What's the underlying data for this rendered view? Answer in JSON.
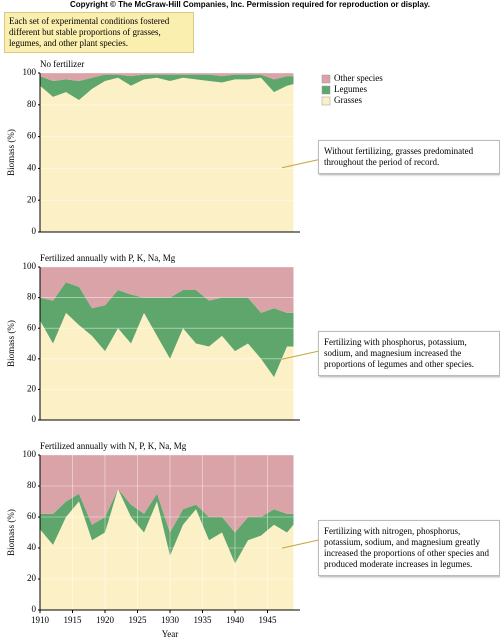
{
  "header": {
    "copyright": "Copyright © The McGraw-Hill Companies, Inc. Permission required for reproduction or display.",
    "note": "Each set of experimental conditions fostered different but stable proportions of grasses, legumes, and other plant species."
  },
  "chart_data": [
    {
      "type": "area",
      "stacked": true,
      "title": "No fertilizer",
      "ylabel": "Biomass (%)",
      "annotation": "Without fertilizing, grasses predominated throughout the period of record.",
      "legend": "top-right",
      "x": [
        1910,
        1912,
        1914,
        1916,
        1918,
        1920,
        1922,
        1924,
        1926,
        1928,
        1930,
        1932,
        1934,
        1936,
        1938,
        1940,
        1942,
        1944,
        1946,
        1948,
        1949
      ],
      "series": [
        {
          "name": "Grasses",
          "color": "#fcf1c6",
          "values": [
            92,
            85,
            88,
            83,
            90,
            95,
            97,
            92,
            96,
            97,
            95,
            97,
            96,
            95,
            94,
            96,
            96,
            97,
            88,
            92,
            93
          ]
        },
        {
          "name": "Legumes",
          "color": "#5fa66c",
          "values": [
            6,
            10,
            8,
            12,
            7,
            4,
            2,
            6,
            3,
            2,
            4,
            2,
            3,
            4,
            4,
            3,
            3,
            2,
            8,
            6,
            5
          ]
        },
        {
          "name": "Other species",
          "color": "#d9a3a8",
          "values": [
            2,
            5,
            4,
            5,
            3,
            1,
            1,
            2,
            1,
            1,
            1,
            1,
            1,
            1,
            2,
            1,
            1,
            1,
            4,
            2,
            2
          ]
        }
      ],
      "xlim": [
        1910,
        1950
      ],
      "ylim": [
        0,
        100
      ],
      "yticks": [
        0,
        20,
        40,
        60,
        80,
        100
      ],
      "grid": true
    },
    {
      "type": "area",
      "stacked": true,
      "title": "Fertilized annually with P, K, Na, Mg",
      "ylabel": "Biomass (%)",
      "annotation": "Fertilizing with phosphorus, potassium, sodium, and magnesium increased the proportions of legumes and other species.",
      "x": [
        1910,
        1912,
        1914,
        1916,
        1918,
        1920,
        1922,
        1924,
        1926,
        1928,
        1930,
        1932,
        1934,
        1936,
        1938,
        1940,
        1942,
        1944,
        1946,
        1948,
        1949
      ],
      "series": [
        {
          "name": "Grasses",
          "color": "#fcf1c6",
          "values": [
            65,
            50,
            70,
            62,
            55,
            45,
            60,
            50,
            70,
            55,
            40,
            60,
            50,
            48,
            55,
            45,
            50,
            40,
            28,
            48,
            48
          ]
        },
        {
          "name": "Legumes",
          "color": "#5fa66c",
          "values": [
            15,
            28,
            20,
            25,
            18,
            30,
            25,
            32,
            10,
            25,
            40,
            25,
            35,
            30,
            25,
            35,
            30,
            30,
            45,
            22,
            22
          ]
        },
        {
          "name": "Other species",
          "color": "#d9a3a8",
          "values": [
            20,
            22,
            10,
            13,
            27,
            25,
            15,
            18,
            20,
            20,
            20,
            15,
            15,
            22,
            20,
            20,
            20,
            30,
            27,
            30,
            30
          ]
        }
      ],
      "xlim": [
        1910,
        1950
      ],
      "ylim": [
        0,
        100
      ],
      "yticks": [
        0,
        20,
        40,
        60,
        80,
        100
      ],
      "grid": true
    },
    {
      "type": "area",
      "stacked": true,
      "title": "Fertilized annually with N, P, K, Na, Mg",
      "ylabel": "Biomass (%)",
      "xlabel": "Year",
      "annotation": "Fertilizing with nitrogen, phosphorus, potassium, sodium, and magnesium greatly increased the proportions of other species and produced moderate increases in legumes.",
      "x": [
        1910,
        1912,
        1914,
        1916,
        1918,
        1920,
        1922,
        1924,
        1926,
        1928,
        1930,
        1932,
        1934,
        1936,
        1938,
        1940,
        1942,
        1944,
        1946,
        1948,
        1949
      ],
      "series": [
        {
          "name": "Grasses",
          "color": "#fcf1c6",
          "values": [
            52,
            42,
            60,
            70,
            45,
            50,
            78,
            60,
            50,
            70,
            35,
            55,
            65,
            45,
            50,
            30,
            45,
            48,
            55,
            50,
            55
          ]
        },
        {
          "name": "Legumes",
          "color": "#5fa66c",
          "values": [
            10,
            20,
            10,
            5,
            10,
            10,
            0,
            8,
            12,
            5,
            15,
            10,
            3,
            15,
            10,
            20,
            15,
            12,
            10,
            12,
            7
          ]
        },
        {
          "name": "Other species",
          "color": "#d9a3a8",
          "values": [
            38,
            38,
            30,
            25,
            45,
            40,
            22,
            32,
            38,
            25,
            50,
            35,
            32,
            40,
            40,
            50,
            40,
            40,
            35,
            38,
            38
          ]
        }
      ],
      "xlim": [
        1910,
        1950
      ],
      "ylim": [
        0,
        100
      ],
      "yticks": [
        0,
        20,
        40,
        60,
        80,
        100
      ],
      "xticks": [
        1910,
        1915,
        1920,
        1925,
        1930,
        1935,
        1940,
        1945
      ],
      "grid": true
    }
  ]
}
